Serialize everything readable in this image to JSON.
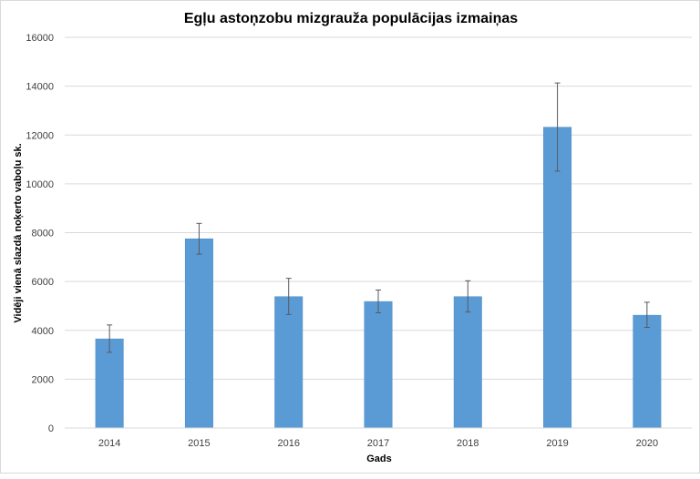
{
  "chart_data": {
    "type": "bar",
    "title": "Egļu astoņzobu mizgrauža populācijas izmaiņas",
    "xlabel": "Gads",
    "ylabel": "Vidēji vienā slazdā noķerto vaboļu sk.",
    "categories": [
      "2014",
      "2015",
      "2016",
      "2017",
      "2018",
      "2019",
      "2020"
    ],
    "values": [
      3650,
      7750,
      5380,
      5180,
      5380,
      12320,
      4620
    ],
    "error_low": [
      3100,
      7120,
      4650,
      4720,
      4750,
      10520,
      4120
    ],
    "error_high": [
      4220,
      8380,
      6130,
      5650,
      6030,
      14130,
      5150
    ],
    "ylim": [
      0,
      16000
    ],
    "yticks": [
      0,
      2000,
      4000,
      6000,
      8000,
      10000,
      12000,
      14000,
      16000
    ],
    "grid": true,
    "legend": "none",
    "bar_color": "#5b9bd5",
    "grid_color": "#d9d9d9",
    "error_color": "#595959"
  }
}
